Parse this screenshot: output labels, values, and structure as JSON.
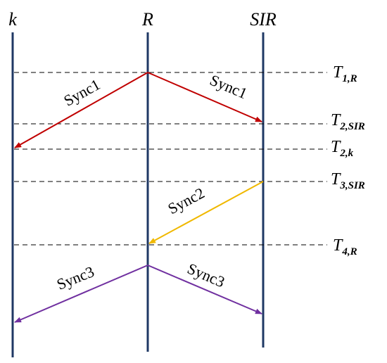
{
  "nodes": [
    {
      "label": "k"
    },
    {
      "label": "R"
    },
    {
      "label": "SIR"
    }
  ],
  "messages": [
    {
      "label": "Sync1"
    },
    {
      "label": "Sync1"
    },
    {
      "label": "Sync2"
    },
    {
      "label": "Sync3"
    },
    {
      "label": "Sync3"
    }
  ],
  "times": [
    {
      "main": "T",
      "sub": "1,R"
    },
    {
      "main": "T",
      "sub": "2,SIR"
    },
    {
      "main": "T",
      "sub": "2,k"
    },
    {
      "main": "T",
      "sub": "3,SIR"
    },
    {
      "main": "T",
      "sub": "4,R"
    }
  ]
}
